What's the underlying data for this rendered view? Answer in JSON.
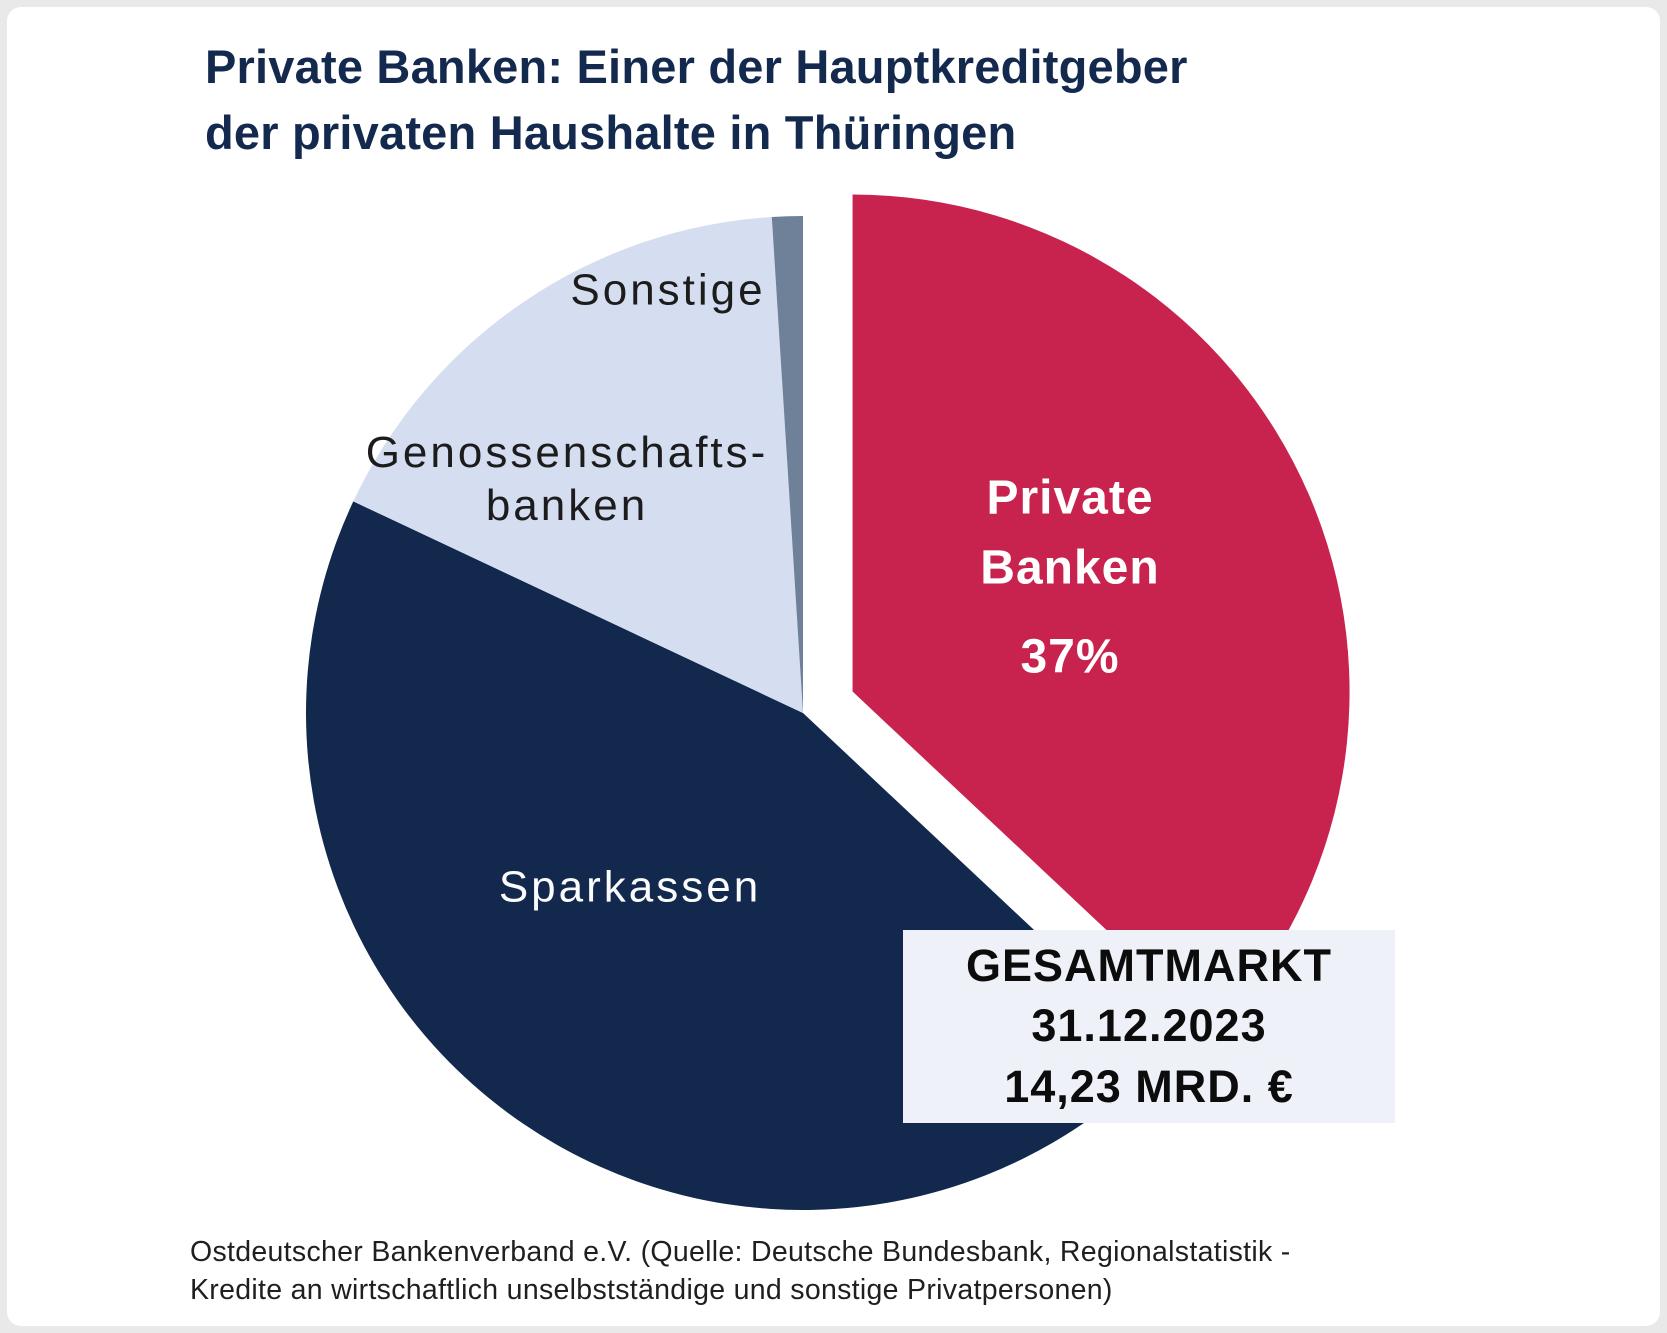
{
  "title": {
    "line1": "Private Banken: Einer der Hauptkreditgeber",
    "line2": "der privaten Haushalte in Thüringen",
    "color": "#14294e"
  },
  "chart_data": {
    "type": "pie",
    "title": "Private Banken: Einer der Hauptkreditgeber der privaten Haushalte in Thüringen",
    "start_angle": "12-oclock",
    "direction": "clockwise",
    "legend_position": "labels-on-slices",
    "slices": [
      {
        "label": "Private Banken",
        "value_pct": 37,
        "color": "#c8234f",
        "exploded": true,
        "value_label": "37%"
      },
      {
        "label": "Sparkassen",
        "value_pct": 45,
        "color": "#12284c",
        "exploded": false,
        "value_label": ""
      },
      {
        "label": "Genossenschaftsbanken",
        "value_pct": 17,
        "color": "#d5ddf1",
        "exploded": false,
        "value_label": ""
      },
      {
        "label": "Sonstige",
        "value_pct": 1,
        "color": "#6f8099",
        "exploded": false,
        "value_label": ""
      }
    ],
    "annotation": "GESAMTMARKT 31.12.2023 14,23 MRD. €"
  },
  "pie_labels": {
    "sonstige": "Sonstige",
    "geno_line1": "Genossenschafts-",
    "geno_line2": "banken",
    "sparkassen": "Sparkassen",
    "private_line1": "Private",
    "private_line2": "Banken",
    "private_pct": "37%"
  },
  "gesamtmarkt": {
    "line1": "GESAMTMARKT",
    "line2": "31.12.2023",
    "line3": "14,23 MRD. €",
    "background": "#eef1f7"
  },
  "footer": {
    "line1": "Ostdeutscher Bankenverband e.V. (Quelle: Deutsche Bundesbank, Regionalstatistik -",
    "line2": "Kredite an wirtschaftlich unselbstständige und sonstige Privatpersonen)"
  }
}
